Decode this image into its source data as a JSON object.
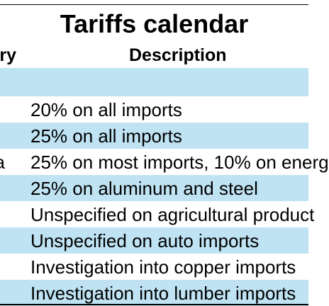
{
  "title": "Tariffs calendar",
  "headers": {
    "country": "ry",
    "description": "Description"
  },
  "rows": [
    {
      "country": "",
      "description": "",
      "shaded": true,
      "tall": true
    },
    {
      "country": "",
      "description": "20% on all imports",
      "shaded": false
    },
    {
      "country": "",
      "description": "25% on all imports",
      "shaded": true
    },
    {
      "country": "a",
      "description": "25% on most imports, 10% on energ",
      "shaded": false
    },
    {
      "country": "",
      "description": "25% on aluminum and steel",
      "shaded": true
    },
    {
      "country": "",
      "description": "Unspecified on agricultural product",
      "shaded": false
    },
    {
      "country": "",
      "description": "Unspecified on auto imports",
      "shaded": true
    },
    {
      "country": "",
      "description": "Investigation into copper imports",
      "shaded": false
    },
    {
      "country": "",
      "description": "Investigation into lumber imports",
      "shaded": true
    }
  ],
  "colors": {
    "row_shade": "#bfe3f3",
    "text": "#000000",
    "rule": "#000000"
  }
}
